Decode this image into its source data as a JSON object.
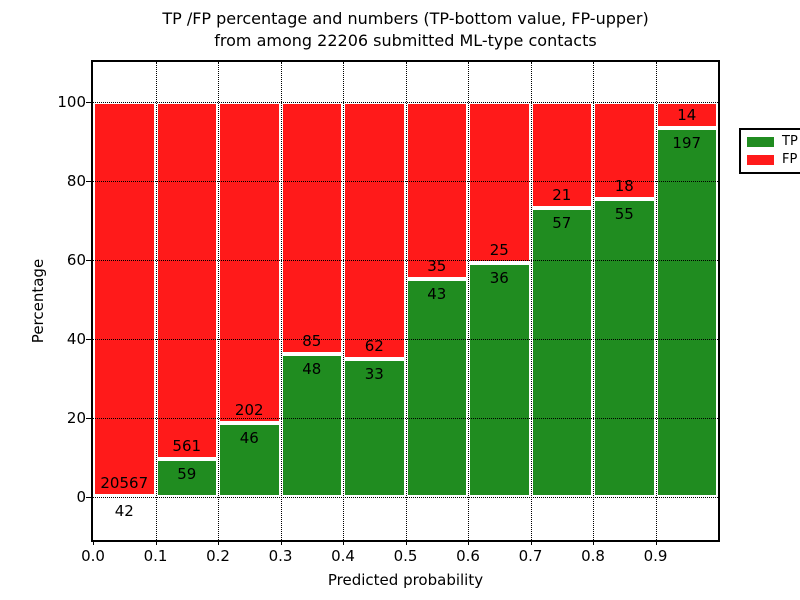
{
  "title": {
    "line1": "TP /FP percentage and numbers (TP-bottom value, FP-upper)",
    "line2": "from among 22206 submitted ML-type contacts"
  },
  "chart_data": {
    "type": "bar",
    "stacked": true,
    "stack_normalized_to_percent": true,
    "title": "TP /FP percentage and numbers (TP-bottom value, FP-upper) from among 22206 submitted ML-type contacts",
    "total_contacts": 22206,
    "xlabel": "Predicted probability",
    "ylabel": "Percentage",
    "bin_edges": [
      0.0,
      0.1,
      0.2,
      0.3,
      0.4,
      0.5,
      0.6,
      0.7,
      0.8,
      0.9,
      1.0
    ],
    "series": [
      {
        "name": "TP",
        "color": "#208c20",
        "counts": [
          42,
          59,
          46,
          48,
          33,
          43,
          36,
          57,
          55,
          197
        ]
      },
      {
        "name": "FP",
        "color": "#ff1a1a",
        "counts": [
          20567,
          561,
          202,
          85,
          62,
          35,
          25,
          21,
          18,
          14
        ]
      }
    ],
    "x_tick_labels": [
      "0.0",
      "0.1",
      "0.2",
      "0.3",
      "0.4",
      "0.5",
      "0.6",
      "0.7",
      "0.8",
      "0.9"
    ],
    "y_tick_values": [
      0,
      20,
      40,
      60,
      80,
      100
    ],
    "xlim": [
      0.0,
      1.0
    ],
    "ylim": [
      -11,
      110
    ],
    "grid": true,
    "grid_style": "dotted",
    "legend": {
      "position": "upper right",
      "entries": [
        {
          "label": "TP",
          "color": "#208c20"
        },
        {
          "label": "FP",
          "color": "#ff1a1a"
        }
      ]
    }
  }
}
